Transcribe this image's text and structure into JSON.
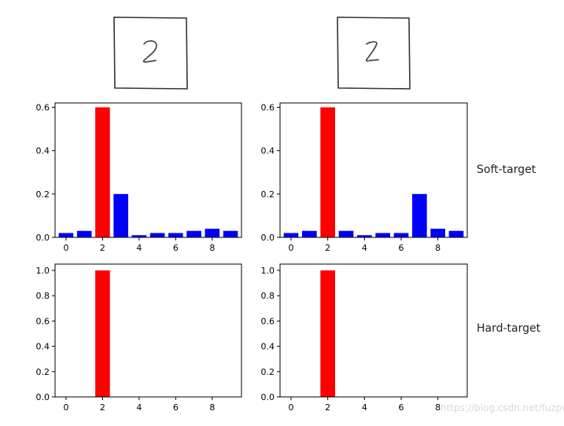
{
  "labels": {
    "soft_target": "Soft-target",
    "hard_target": "Hard-target"
  },
  "watermark": "https://blog.csdn.net/fuzpw",
  "digit_images": [
    {
      "glyph": "2"
    },
    {
      "glyph": "2"
    }
  ],
  "colors": {
    "highlight": "#ff0000",
    "other": "#0000ff"
  },
  "chart_data": [
    {
      "type": "bar",
      "row": "soft-target",
      "col": "left",
      "x": [
        0,
        1,
        2,
        3,
        4,
        5,
        6,
        7,
        8,
        9
      ],
      "values": [
        0.02,
        0.03,
        0.6,
        0.2,
        0.01,
        0.02,
        0.02,
        0.03,
        0.04,
        0.03
      ],
      "highlight_index": 2,
      "xticks": [
        0,
        2,
        4,
        6,
        8
      ],
      "yticks": [
        0.0,
        0.2,
        0.4,
        0.6
      ],
      "ytick_labels": [
        "0.0",
        "0.2",
        "0.4",
        "0.6"
      ],
      "ylim": [
        0,
        0.62
      ],
      "xlim": [
        -0.6,
        9.6
      ]
    },
    {
      "type": "bar",
      "row": "soft-target",
      "col": "right",
      "x": [
        0,
        1,
        2,
        3,
        4,
        5,
        6,
        7,
        8,
        9
      ],
      "values": [
        0.02,
        0.03,
        0.6,
        0.03,
        0.01,
        0.02,
        0.02,
        0.2,
        0.04,
        0.03
      ],
      "highlight_index": 2,
      "xticks": [
        0,
        2,
        4,
        6,
        8
      ],
      "yticks": [
        0.0,
        0.2,
        0.4,
        0.6
      ],
      "ytick_labels": [
        "0.0",
        "0.2",
        "0.4",
        "0.6"
      ],
      "ylim": [
        0,
        0.62
      ],
      "xlim": [
        -0.6,
        9.6
      ]
    },
    {
      "type": "bar",
      "row": "hard-target",
      "col": "left",
      "x": [
        0,
        1,
        2,
        3,
        4,
        5,
        6,
        7,
        8,
        9
      ],
      "values": [
        0,
        0,
        1.0,
        0,
        0,
        0,
        0,
        0,
        0,
        0
      ],
      "highlight_index": 2,
      "xticks": [
        0,
        2,
        4,
        6,
        8
      ],
      "yticks": [
        0.0,
        0.2,
        0.4,
        0.6,
        0.8,
        1.0
      ],
      "ytick_labels": [
        "0.0",
        "0.2",
        "0.4",
        "0.6",
        "0.8",
        "1.0"
      ],
      "ylim": [
        0,
        1.05
      ],
      "xlim": [
        -0.6,
        9.6
      ]
    },
    {
      "type": "bar",
      "row": "hard-target",
      "col": "right",
      "x": [
        0,
        1,
        2,
        3,
        4,
        5,
        6,
        7,
        8,
        9
      ],
      "values": [
        0,
        0,
        1.0,
        0,
        0,
        0,
        0,
        0,
        0,
        0
      ],
      "highlight_index": 2,
      "xticks": [
        0,
        2,
        4,
        6,
        8
      ],
      "yticks": [
        0.0,
        0.2,
        0.4,
        0.6,
        0.8,
        1.0
      ],
      "ytick_labels": [
        "0.0",
        "0.2",
        "0.4",
        "0.6",
        "0.8",
        "1.0"
      ],
      "ylim": [
        0,
        1.05
      ],
      "xlim": [
        -0.6,
        9.6
      ]
    }
  ]
}
